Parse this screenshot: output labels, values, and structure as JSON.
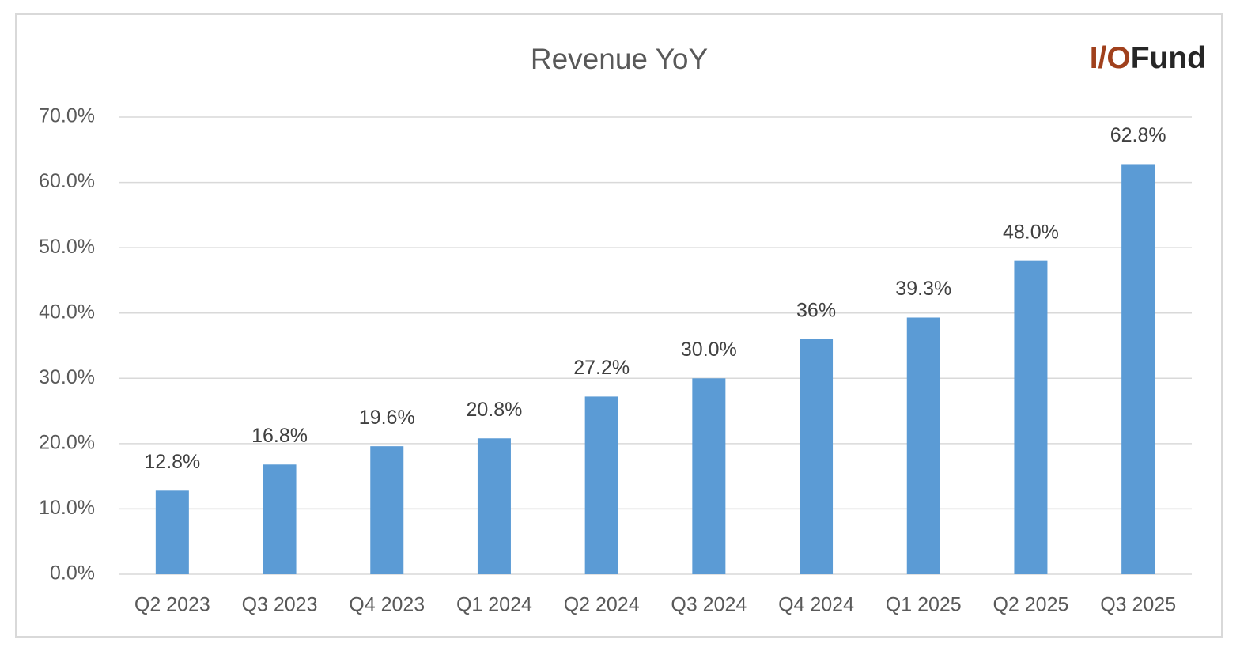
{
  "chart_data": {
    "type": "bar",
    "title": "Revenue YoY",
    "logo": {
      "prefix": "I/O",
      "suffix": "Fund"
    },
    "categories": [
      "Q2 2023",
      "Q3 2023",
      "Q4 2023",
      "Q1 2024",
      "Q2 2024",
      "Q3 2024",
      "Q4 2024",
      "Q1 2025",
      "Q2 2025",
      "Q3 2025"
    ],
    "values": [
      12.8,
      16.8,
      19.6,
      20.8,
      27.2,
      30.0,
      36,
      39.3,
      48.0,
      62.8
    ],
    "value_labels": [
      "12.8%",
      "16.8%",
      "19.6%",
      "20.8%",
      "27.2%",
      "30.0%",
      "36%",
      "39.3%",
      "48.0%",
      "62.8%"
    ],
    "color": "#5b9bd5",
    "ylim": [
      0,
      70
    ],
    "yticks": [
      {
        "value": 0,
        "label": "0.0%"
      },
      {
        "value": 10,
        "label": "10.0%"
      },
      {
        "value": 20,
        "label": "20.0%"
      },
      {
        "value": 30,
        "label": "30.0%"
      },
      {
        "value": 40,
        "label": "40.0%"
      },
      {
        "value": 50,
        "label": "50.0%"
      },
      {
        "value": 60,
        "label": "60.0%"
      },
      {
        "value": 70,
        "label": "70.0%"
      }
    ],
    "grid": true
  }
}
